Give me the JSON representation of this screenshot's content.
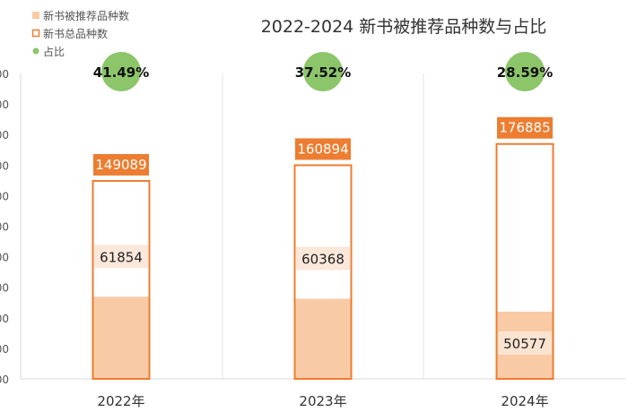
{
  "chart_data": {
    "type": "bar",
    "title": "2022-2024 新书被推荐品种数与占比",
    "categories": [
      "2022年",
      "2023年",
      "2024年"
    ],
    "series": [
      {
        "name": "新书被推荐品种数",
        "values": [
          61854,
          60368,
          50577
        ],
        "color": "#f8cba6"
      },
      {
        "name": "新书总品种数",
        "values": [
          149089,
          160894,
          176885
        ],
        "color": "#ed7d31"
      },
      {
        "name": "占比",
        "values": [
          "41.49%",
          "37.52%",
          "28.59%"
        ],
        "color": "#8cc56a"
      }
    ],
    "ylim": [
      0,
      230000
    ],
    "ytick_labels": [
      "00",
      "00",
      "00",
      "00",
      "00",
      "00",
      "00",
      "00",
      "00",
      "00",
      "00"
    ],
    "legend_position": "top-left",
    "grid": "vertical separators"
  }
}
